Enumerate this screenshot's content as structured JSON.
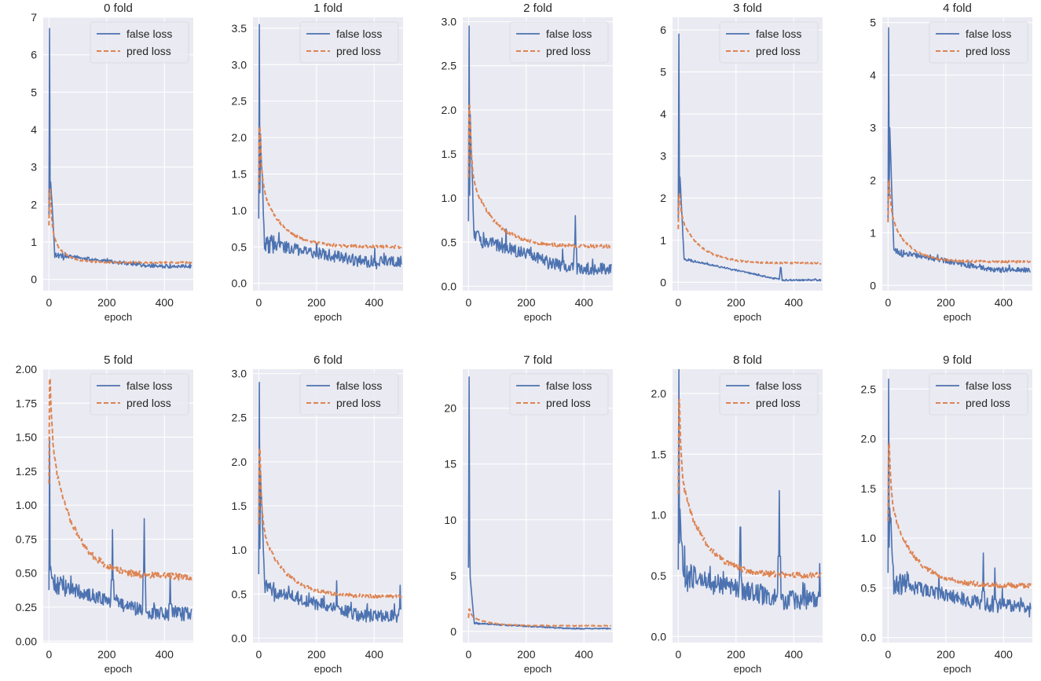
{
  "figure": {
    "colors": {
      "false_loss": "#4c72b0",
      "pred_loss": "#dd8452",
      "plot_bg": "#eaeaf2",
      "grid": "#ffffff"
    },
    "legend_labels": [
      "false loss",
      "pred loss"
    ],
    "xlabel": "epoch"
  },
  "chart_data": [
    {
      "type": "line",
      "title": "0 fold",
      "xlabel": "epoch",
      "ylabel": "",
      "xlim": [
        -20,
        500
      ],
      "ylim": [
        -0.3,
        7
      ],
      "xticks": [
        0,
        200,
        400
      ],
      "yticks": [
        0,
        1,
        2,
        3,
        4,
        5,
        6,
        7
      ],
      "ytick_labels": [
        "0",
        "1",
        "2",
        "3",
        "4",
        "5",
        "6",
        "7"
      ],
      "legend": "top-right",
      "series": [
        {
          "name": "false loss",
          "style": "solid",
          "peak": 6.7,
          "second": 2.6,
          "plateau": 0.65,
          "final": 0.35,
          "noise": 0.05,
          "spikes": []
        },
        {
          "name": "pred loss",
          "style": "dashed",
          "start": 2.4,
          "plateau": 1.3,
          "final": 0.45,
          "tau": 40,
          "noise": 0.02
        }
      ]
    },
    {
      "type": "line",
      "title": "1 fold",
      "xlabel": "epoch",
      "ylabel": "",
      "xlim": [
        -20,
        500
      ],
      "ylim": [
        -0.1,
        3.65
      ],
      "xticks": [
        0,
        200,
        400
      ],
      "yticks": [
        0,
        0.5,
        1,
        1.5,
        2,
        2.5,
        3,
        3.5
      ],
      "ytick_labels": [
        "0.0",
        "0.5",
        "1.0",
        "1.5",
        "2.0",
        "2.5",
        "3.0",
        "3.5"
      ],
      "legend": "top-right",
      "series": [
        {
          "name": "false loss",
          "style": "solid",
          "peak": 3.55,
          "second": 2.05,
          "plateau": 0.55,
          "final": 0.3,
          "noise": 0.08,
          "spikes": []
        },
        {
          "name": "pred loss",
          "style": "dashed",
          "start": 2.15,
          "plateau": 1.4,
          "final": 0.5,
          "tau": 70,
          "noise": 0.02
        }
      ]
    },
    {
      "type": "line",
      "title": "2 fold",
      "xlabel": "epoch",
      "ylabel": "",
      "xlim": [
        -20,
        500
      ],
      "ylim": [
        -0.05,
        3.05
      ],
      "xticks": [
        0,
        200,
        400
      ],
      "yticks": [
        0,
        0.5,
        1,
        1.5,
        2,
        2.5,
        3
      ],
      "ytick_labels": [
        "0.0",
        "0.5",
        "1.0",
        "1.5",
        "2.0",
        "2.5",
        "3.0"
      ],
      "legend": "top-right",
      "series": [
        {
          "name": "false loss",
          "style": "solid",
          "peak": 2.95,
          "second": 1.95,
          "plateau": 0.55,
          "final": 0.2,
          "noise": 0.07,
          "spikes": [
            [
              130,
              0.65
            ],
            [
              370,
              0.8
            ]
          ]
        },
        {
          "name": "pred loss",
          "style": "dashed",
          "start": 2.05,
          "plateau": 1.3,
          "final": 0.45,
          "tau": 80,
          "noise": 0.02
        }
      ]
    },
    {
      "type": "line",
      "title": "3 fold",
      "xlabel": "epoch",
      "ylabel": "",
      "xlim": [
        -20,
        500
      ],
      "ylim": [
        -0.2,
        6.3
      ],
      "xticks": [
        0,
        200,
        400
      ],
      "yticks": [
        0,
        1,
        2,
        3,
        4,
        5,
        6
      ],
      "ytick_labels": [
        "0",
        "1",
        "2",
        "3",
        "4",
        "5",
        "6"
      ],
      "legend": "top-right",
      "series": [
        {
          "name": "false loss",
          "style": "solid",
          "peak": 5.9,
          "second": 2.5,
          "plateau": 0.55,
          "final": 0.05,
          "noise": 0.02,
          "spikes": [
            [
              355,
              0.35
            ]
          ]
        },
        {
          "name": "pred loss",
          "style": "dashed",
          "start": 2.1,
          "plateau": 1.6,
          "final": 0.45,
          "tau": 70,
          "noise": 0.02
        }
      ]
    },
    {
      "type": "line",
      "title": "4 fold",
      "xlabel": "epoch",
      "ylabel": "",
      "xlim": [
        -20,
        500
      ],
      "ylim": [
        -0.1,
        5.1
      ],
      "xticks": [
        0,
        200,
        400
      ],
      "yticks": [
        0,
        1,
        2,
        3,
        4,
        5
      ],
      "ytick_labels": [
        "0",
        "1",
        "2",
        "3",
        "4",
        "5"
      ],
      "legend": "top-right",
      "series": [
        {
          "name": "false loss",
          "style": "solid",
          "peak": 4.9,
          "second": 3.0,
          "plateau": 0.65,
          "final": 0.3,
          "noise": 0.05,
          "spikes": []
        },
        {
          "name": "pred loss",
          "style": "dashed",
          "start": 2.0,
          "plateau": 1.4,
          "final": 0.45,
          "tau": 60,
          "noise": 0.02
        }
      ]
    },
    {
      "type": "line",
      "title": "5 fold",
      "xlabel": "epoch",
      "ylabel": "",
      "xlim": [
        -20,
        500
      ],
      "ylim": [
        -0.01,
        2.0
      ],
      "xticks": [
        0,
        200,
        400
      ],
      "yticks": [
        0,
        0.25,
        0.5,
        0.75,
        1,
        1.25,
        1.5,
        1.75,
        2
      ],
      "ytick_labels": [
        "0.00",
        "0.25",
        "0.50",
        "0.75",
        "1.00",
        "1.25",
        "1.50",
        "1.75",
        "2.00"
      ],
      "legend": "top-right",
      "series": [
        {
          "name": "false loss",
          "style": "solid",
          "peak": 1.5,
          "second": 0.55,
          "plateau": 0.42,
          "final": 0.2,
          "noise": 0.05,
          "spikes": [
            [
              220,
              0.82
            ],
            [
              330,
              0.9
            ],
            [
              420,
              0.5
            ]
          ]
        },
        {
          "name": "pred loss",
          "style": "dashed",
          "start": 1.93,
          "plateau": 1.5,
          "final": 0.47,
          "tau": 80,
          "noise": 0.025
        }
      ]
    },
    {
      "type": "line",
      "title": "6 fold",
      "xlabel": "epoch",
      "ylabel": "",
      "xlim": [
        -20,
        500
      ],
      "ylim": [
        -0.05,
        3.05
      ],
      "xticks": [
        0,
        200,
        400
      ],
      "yticks": [
        0,
        0.5,
        1,
        1.5,
        2,
        2.5,
        3
      ],
      "ytick_labels": [
        "0.0",
        "0.5",
        "1.0",
        "1.5",
        "2.0",
        "2.5",
        "3.0"
      ],
      "legend": "top-right",
      "series": [
        {
          "name": "false loss",
          "style": "solid",
          "peak": 2.9,
          "second": 1.9,
          "plateau": 0.55,
          "final": 0.25,
          "noise": 0.07,
          "spikes": [
            [
              270,
              0.65
            ],
            [
              490,
              0.6
            ]
          ]
        },
        {
          "name": "pred loss",
          "style": "dashed",
          "start": 2.15,
          "plateau": 1.3,
          "final": 0.47,
          "tau": 80,
          "noise": 0.02
        }
      ]
    },
    {
      "type": "line",
      "title": "7 fold",
      "xlabel": "epoch",
      "ylabel": "",
      "xlim": [
        -20,
        500
      ],
      "ylim": [
        -1,
        23.5
      ],
      "xticks": [
        0,
        200,
        400
      ],
      "yticks": [
        0,
        5,
        10,
        15,
        20
      ],
      "ytick_labels": [
        "0",
        "5",
        "10",
        "15",
        "20"
      ],
      "legend": "top-right",
      "series": [
        {
          "name": "false loss",
          "style": "solid",
          "peak": 22.8,
          "second": 4.8,
          "plateau": 0.7,
          "final": 0.25,
          "noise": 0.05,
          "spikes": []
        },
        {
          "name": "pred loss",
          "style": "dashed",
          "start": 2.0,
          "plateau": 1.4,
          "final": 0.5,
          "tau": 60,
          "noise": 0.03
        }
      ]
    },
    {
      "type": "line",
      "title": "8 fold",
      "xlabel": "epoch",
      "ylabel": "",
      "xlim": [
        -20,
        500
      ],
      "ylim": [
        -0.05,
        2.2
      ],
      "xticks": [
        0,
        200,
        400
      ],
      "yticks": [
        0,
        0.5,
        1,
        1.5,
        2
      ],
      "ytick_labels": [
        "0.0",
        "0.5",
        "1.0",
        "1.5",
        "2.0"
      ],
      "legend": "top-right",
      "series": [
        {
          "name": "false loss",
          "style": "solid",
          "peak": 2.2,
          "second": 1.05,
          "plateau": 0.5,
          "final": 0.3,
          "noise": 0.08,
          "spikes": [
            [
              215,
              0.9
            ],
            [
              350,
              1.2
            ],
            [
              490,
              0.6
            ]
          ]
        },
        {
          "name": "pred loss",
          "style": "dashed",
          "start": 1.95,
          "plateau": 1.35,
          "final": 0.5,
          "tau": 80,
          "noise": 0.025
        }
      ]
    },
    {
      "type": "line",
      "title": "9 fold",
      "xlabel": "epoch",
      "ylabel": "",
      "xlim": [
        -20,
        500
      ],
      "ylim": [
        -0.05,
        2.7
      ],
      "xticks": [
        0,
        200,
        400
      ],
      "yticks": [
        0,
        0.5,
        1,
        1.5,
        2,
        2.5
      ],
      "ytick_labels": [
        "0.0",
        "0.5",
        "1.0",
        "1.5",
        "2.0",
        "2.5"
      ],
      "legend": "top-right",
      "series": [
        {
          "name": "false loss",
          "style": "solid",
          "peak": 2.6,
          "second": 1.3,
          "plateau": 0.55,
          "final": 0.32,
          "noise": 0.07,
          "spikes": [
            [
              330,
              0.85
            ],
            [
              370,
              0.7
            ]
          ]
        },
        {
          "name": "pred loss",
          "style": "dashed",
          "start": 1.95,
          "plateau": 1.4,
          "final": 0.52,
          "tau": 80,
          "noise": 0.025
        }
      ]
    }
  ]
}
